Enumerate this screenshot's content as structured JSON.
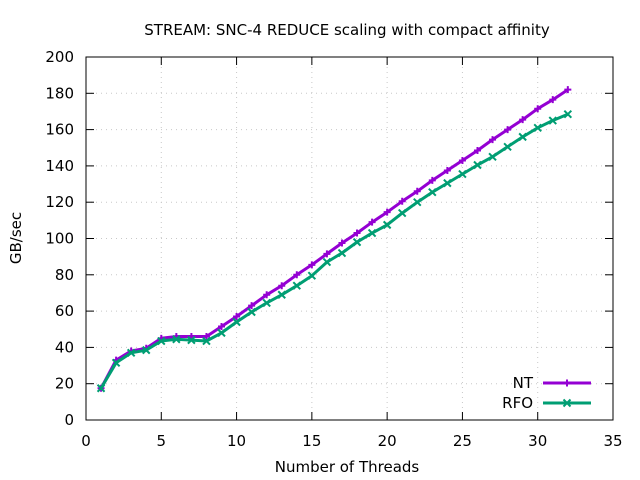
{
  "chart_data": {
    "type": "line",
    "title": "STREAM: SNC-4 REDUCE scaling with compact affinity",
    "xlabel": "Number of Threads",
    "ylabel": "GB/sec",
    "xlim": [
      0,
      35
    ],
    "ylim": [
      0,
      200
    ],
    "xticks": [
      0,
      5,
      10,
      15,
      20,
      25,
      30,
      35
    ],
    "yticks": [
      0,
      20,
      40,
      60,
      80,
      100,
      120,
      140,
      160,
      180,
      200
    ],
    "grid": true,
    "legend_position": "bottom-right",
    "x": [
      1,
      2,
      3,
      4,
      5,
      6,
      7,
      8,
      9,
      10,
      11,
      12,
      13,
      14,
      15,
      16,
      17,
      18,
      19,
      20,
      21,
      22,
      23,
      24,
      25,
      26,
      27,
      28,
      29,
      30,
      31,
      32
    ],
    "series": [
      {
        "name": "NT",
        "color": "#9400d3",
        "marker": "plus",
        "values": [
          17.5,
          33,
          38,
          39.5,
          45,
          46,
          46,
          46,
          51.5,
          57,
          63,
          69,
          74,
          80,
          85.5,
          91.5,
          97.5,
          103,
          109,
          114.5,
          120.5,
          126,
          132,
          137.5,
          143,
          148.5,
          154.5,
          160,
          165.5,
          171.5,
          176.5,
          182
        ]
      },
      {
        "name": "RFO",
        "color": "#009e73",
        "marker": "x",
        "values": [
          17.5,
          31.5,
          37,
          38.5,
          43.5,
          44.5,
          44,
          43.5,
          48,
          54,
          59.5,
          64.5,
          69,
          74,
          79.5,
          87,
          92,
          98,
          103,
          107.5,
          114,
          120,
          125.5,
          130.5,
          135.5,
          140.5,
          145,
          150.5,
          156,
          161,
          165,
          168.5
        ]
      }
    ]
  }
}
